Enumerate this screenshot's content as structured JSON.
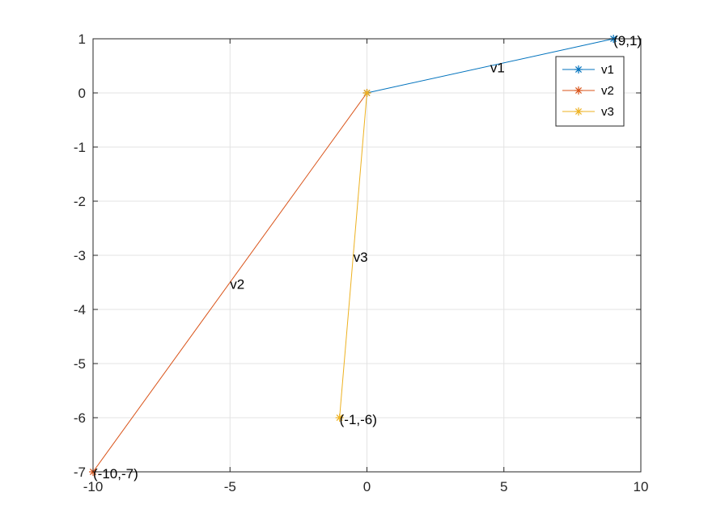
{
  "chart_data": {
    "type": "line",
    "title": "",
    "xlabel": "",
    "ylabel": "",
    "xlim": [
      -10,
      10
    ],
    "ylim": [
      -7,
      1
    ],
    "x_ticks": [
      -10,
      -5,
      0,
      5,
      10
    ],
    "y_ticks": [
      1,
      0,
      -1,
      -2,
      -3,
      -4,
      -5,
      -6,
      -7
    ],
    "x_tick_labels": [
      "-10",
      "-5",
      "0",
      "5",
      "10"
    ],
    "y_tick_labels": [
      "1",
      "0",
      "-1",
      "-2",
      "-3",
      "-4",
      "-5",
      "-6",
      "-7"
    ],
    "grid": true,
    "legend_position": "top-right",
    "series": [
      {
        "name": "v1",
        "color": "#0072bd",
        "x": [
          0,
          9
        ],
        "y": [
          0,
          1
        ],
        "marker": "asterisk",
        "endpoint_label": "(9,1)",
        "mid_label": "v1"
      },
      {
        "name": "v2",
        "color": "#d95319",
        "x": [
          0,
          -10
        ],
        "y": [
          0,
          -7
        ],
        "marker": "asterisk",
        "endpoint_label": "(-10,-7)",
        "mid_label": "v2"
      },
      {
        "name": "v3",
        "color": "#edb120",
        "x": [
          0,
          -1
        ],
        "y": [
          0,
          -6
        ],
        "marker": "asterisk",
        "endpoint_label": "(-1,-6)",
        "mid_label": "v3"
      }
    ]
  }
}
